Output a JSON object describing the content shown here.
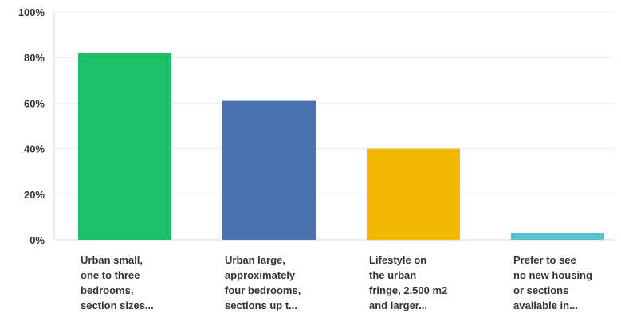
{
  "chart_data": {
    "type": "bar",
    "title": "",
    "xlabel": "",
    "ylabel": "",
    "ylim": [
      0,
      100
    ],
    "y_ticks": [
      "0%",
      "20%",
      "40%",
      "60%",
      "80%",
      "100%"
    ],
    "y_tick_values": [
      0,
      20,
      40,
      60,
      80,
      100
    ],
    "grid": true,
    "legend": "none",
    "categories": [
      [
        "Urban small,",
        "one to three",
        "bedrooms,",
        "section sizes..."
      ],
      [
        "Urban large,",
        "approximately",
        "four bedrooms,",
        "sections up t..."
      ],
      [
        "Lifestyle on",
        "the urban",
        "fringe, 2,500 m2",
        "and larger..."
      ],
      [
        "Prefer to see",
        "no new housing",
        "or sections",
        "available in..."
      ]
    ],
    "values": [
      82,
      61,
      40,
      3
    ],
    "colors": [
      "#1fbf6a",
      "#4a72b0",
      "#f2b705",
      "#5cc2cf"
    ]
  }
}
